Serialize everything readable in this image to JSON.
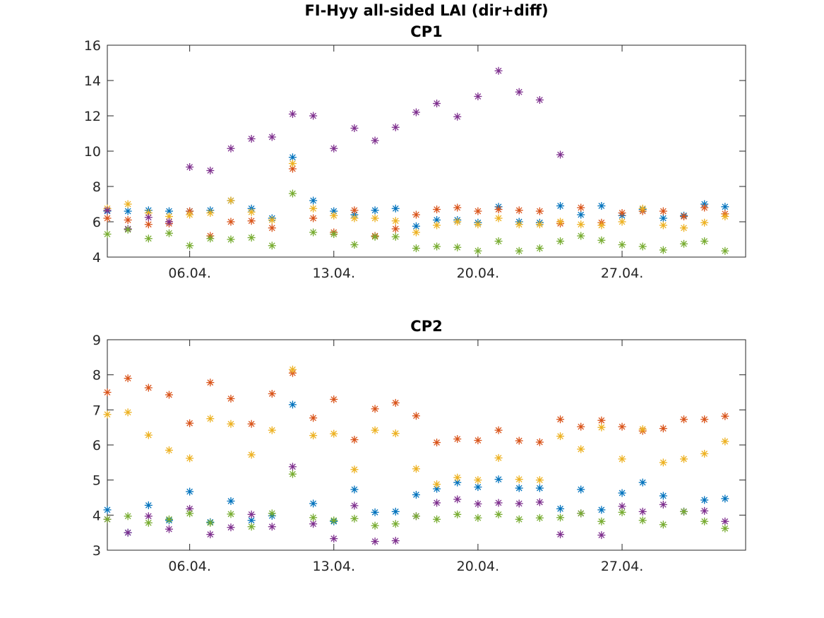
{
  "figure": {
    "title": "FI-Hyy all-sided LAI (dir+diff)"
  },
  "chart_data": [
    {
      "type": "scatter",
      "title": "CP1",
      "marker": "asterisk",
      "xlim": [
        "2017-04-02",
        "2017-05-03"
      ],
      "ylim": [
        4,
        16
      ],
      "yticks": [
        4,
        6,
        8,
        10,
        12,
        14,
        16
      ],
      "xticks": [
        {
          "date": "2017-04-06",
          "label": "06.04."
        },
        {
          "date": "2017-04-13",
          "label": "13.04."
        },
        {
          "date": "2017-04-20",
          "label": "20.04."
        },
        {
          "date": "2017-04-27",
          "label": "27.04."
        }
      ],
      "dates": [
        "2017-04-02",
        "2017-04-03",
        "2017-04-04",
        "2017-04-05",
        "2017-04-06",
        "2017-04-07",
        "2017-04-08",
        "2017-04-09",
        "2017-04-10",
        "2017-04-11",
        "2017-04-12",
        "2017-04-13",
        "2017-04-14",
        "2017-04-15",
        "2017-04-16",
        "2017-04-17",
        "2017-04-18",
        "2017-04-19",
        "2017-04-20",
        "2017-04-21",
        "2017-04-22",
        "2017-04-23",
        "2017-04-24",
        "2017-04-25",
        "2017-04-26",
        "2017-04-27",
        "2017-04-28",
        "2017-04-29",
        "2017-04-30",
        "2017-05-01",
        "2017-05-02"
      ],
      "series": [
        {
          "color": "#0072BD",
          "values": [
            6.6,
            6.6,
            6.65,
            6.6,
            6.6,
            6.65,
            7.2,
            6.75,
            6.2,
            9.65,
            7.2,
            6.6,
            6.4,
            6.65,
            6.75,
            5.75,
            6.1,
            6.1,
            5.95,
            6.85,
            6.0,
            5.95,
            6.9,
            6.4,
            6.9,
            6.35,
            6.7,
            6.2,
            6.35,
            7.0,
            6.85
          ]
        },
        {
          "color": "#D95319",
          "values": [
            6.2,
            6.1,
            5.85,
            5.9,
            6.6,
            5.2,
            6.0,
            6.05,
            5.65,
            9.0,
            6.2,
            5.4,
            6.65,
            5.2,
            5.6,
            6.4,
            6.7,
            6.8,
            6.6,
            6.7,
            6.65,
            6.6,
            5.9,
            6.8,
            5.95,
            6.5,
            6.6,
            6.6,
            6.3,
            6.8,
            6.45
          ]
        },
        {
          "color": "#EDB120",
          "values": [
            6.75,
            7.0,
            6.5,
            6.3,
            6.4,
            6.5,
            7.2,
            6.55,
            6.1,
            9.3,
            6.75,
            6.35,
            6.2,
            6.2,
            6.05,
            5.4,
            5.8,
            6.0,
            5.85,
            6.2,
            5.85,
            5.85,
            6.0,
            5.85,
            5.8,
            6.0,
            6.75,
            5.8,
            5.65,
            5.95,
            6.3
          ]
        },
        {
          "color": "#7E2F8E",
          "values": [
            6.65,
            5.6,
            6.25,
            6.0,
            9.1,
            8.9,
            10.15,
            10.7,
            10.8,
            12.1,
            12.0,
            10.15,
            11.3,
            10.6,
            11.35,
            12.2,
            12.7,
            11.95,
            13.1,
            14.55,
            13.35,
            12.9,
            9.8,
            null,
            null,
            null,
            null,
            null,
            null,
            null,
            null
          ]
        },
        {
          "color": "#77AC30",
          "values": [
            5.3,
            5.55,
            5.05,
            5.35,
            4.65,
            5.05,
            5.0,
            5.1,
            4.65,
            7.6,
            5.4,
            5.3,
            4.7,
            5.15,
            5.15,
            4.5,
            4.6,
            4.55,
            4.35,
            4.9,
            4.35,
            4.5,
            4.9,
            5.2,
            4.95,
            4.7,
            4.6,
            4.4,
            4.75,
            4.9,
            4.35
          ]
        }
      ]
    },
    {
      "type": "scatter",
      "title": "CP2",
      "marker": "asterisk",
      "xlim": [
        "2017-04-02",
        "2017-05-03"
      ],
      "ylim": [
        3,
        9
      ],
      "yticks": [
        3,
        4,
        5,
        6,
        7,
        8,
        9
      ],
      "xticks": [
        {
          "date": "2017-04-06",
          "label": "06.04."
        },
        {
          "date": "2017-04-13",
          "label": "13.04."
        },
        {
          "date": "2017-04-20",
          "label": "20.04."
        },
        {
          "date": "2017-04-27",
          "label": "27.04."
        }
      ],
      "dates": [
        "2017-04-02",
        "2017-04-03",
        "2017-04-04",
        "2017-04-05",
        "2017-04-06",
        "2017-04-07",
        "2017-04-08",
        "2017-04-09",
        "2017-04-10",
        "2017-04-11",
        "2017-04-12",
        "2017-04-13",
        "2017-04-14",
        "2017-04-15",
        "2017-04-16",
        "2017-04-17",
        "2017-04-18",
        "2017-04-19",
        "2017-04-20",
        "2017-04-21",
        "2017-04-22",
        "2017-04-23",
        "2017-04-24",
        "2017-04-25",
        "2017-04-26",
        "2017-04-27",
        "2017-04-28",
        "2017-04-29",
        "2017-04-30",
        "2017-05-01",
        "2017-05-02"
      ],
      "series": [
        {
          "color": "#0072BD",
          "values": [
            4.15,
            3.5,
            4.28,
            3.85,
            4.67,
            3.8,
            4.4,
            3.85,
            3.98,
            7.15,
            4.33,
            3.82,
            4.73,
            4.08,
            4.1,
            4.58,
            4.75,
            4.93,
            4.8,
            5.02,
            4.77,
            4.77,
            4.18,
            4.73,
            4.15,
            4.63,
            4.93,
            4.55,
            4.1,
            4.43,
            4.47
          ]
        },
        {
          "color": "#D95319",
          "values": [
            7.5,
            7.9,
            7.63,
            7.43,
            6.62,
            7.78,
            7.32,
            6.6,
            7.46,
            8.05,
            6.77,
            7.3,
            6.15,
            7.03,
            7.2,
            6.83,
            6.07,
            6.17,
            6.13,
            6.42,
            6.12,
            6.08,
            6.73,
            6.52,
            6.7,
            6.52,
            6.4,
            6.47,
            6.73,
            6.73,
            6.82
          ]
        },
        {
          "color": "#EDB120",
          "values": [
            6.87,
            6.93,
            6.28,
            5.85,
            5.62,
            6.75,
            6.6,
            5.72,
            6.42,
            8.15,
            6.27,
            6.32,
            5.3,
            6.42,
            6.33,
            5.32,
            4.88,
            5.07,
            5.0,
            5.63,
            5.02,
            5.0,
            6.25,
            5.88,
            6.5,
            5.6,
            6.45,
            5.5,
            5.6,
            5.75,
            6.1
          ]
        },
        {
          "color": "#7E2F8E",
          "values": [
            3.88,
            3.5,
            3.97,
            3.6,
            4.18,
            3.45,
            3.65,
            4.02,
            3.67,
            5.38,
            3.75,
            3.33,
            4.27,
            3.25,
            3.27,
            3.97,
            4.35,
            4.45,
            4.32,
            4.35,
            4.33,
            4.37,
            3.45,
            4.05,
            3.43,
            4.25,
            4.1,
            4.3,
            4.1,
            4.12,
            3.82
          ]
        },
        {
          "color": "#77AC30",
          "values": [
            3.88,
            3.97,
            3.78,
            3.88,
            4.05,
            3.78,
            4.03,
            3.67,
            4.05,
            5.17,
            3.93,
            3.85,
            3.9,
            3.7,
            3.75,
            3.97,
            3.88,
            4.02,
            3.92,
            4.02,
            3.88,
            3.92,
            3.93,
            4.05,
            3.82,
            4.08,
            3.85,
            3.73,
            4.1,
            3.82,
            3.62
          ]
        }
      ]
    }
  ]
}
